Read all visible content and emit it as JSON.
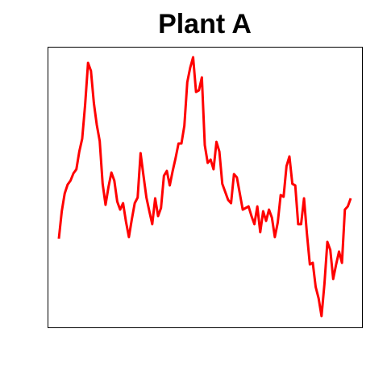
{
  "chart_data": {
    "type": "line",
    "title": "Plant A",
    "color": "#ff0000",
    "ylim": [
      0,
      348
    ],
    "values": [
      110,
      144,
      166,
      177,
      182,
      191,
      196,
      218,
      234,
      276,
      328,
      318,
      278,
      251,
      231,
      178,
      152,
      174,
      192,
      182,
      156,
      146,
      154,
      131,
      112,
      134,
      154,
      161,
      216,
      188,
      161,
      144,
      128,
      160,
      138,
      148,
      188,
      194,
      176,
      194,
      210,
      228,
      228,
      250,
      304,
      322,
      335,
      292,
      294,
      310,
      226,
      204,
      208,
      196,
      230,
      218,
      178,
      168,
      158,
      154,
      190,
      186,
      166,
      146,
      148,
      150,
      138,
      128,
      150,
      118,
      144,
      132,
      146,
      136,
      112,
      130,
      164,
      162,
      200,
      212,
      178,
      176,
      128,
      128,
      160,
      116,
      78,
      80,
      50,
      36,
      14,
      54,
      106,
      96,
      60,
      78,
      94,
      80,
      146,
      150,
      160
    ]
  }
}
